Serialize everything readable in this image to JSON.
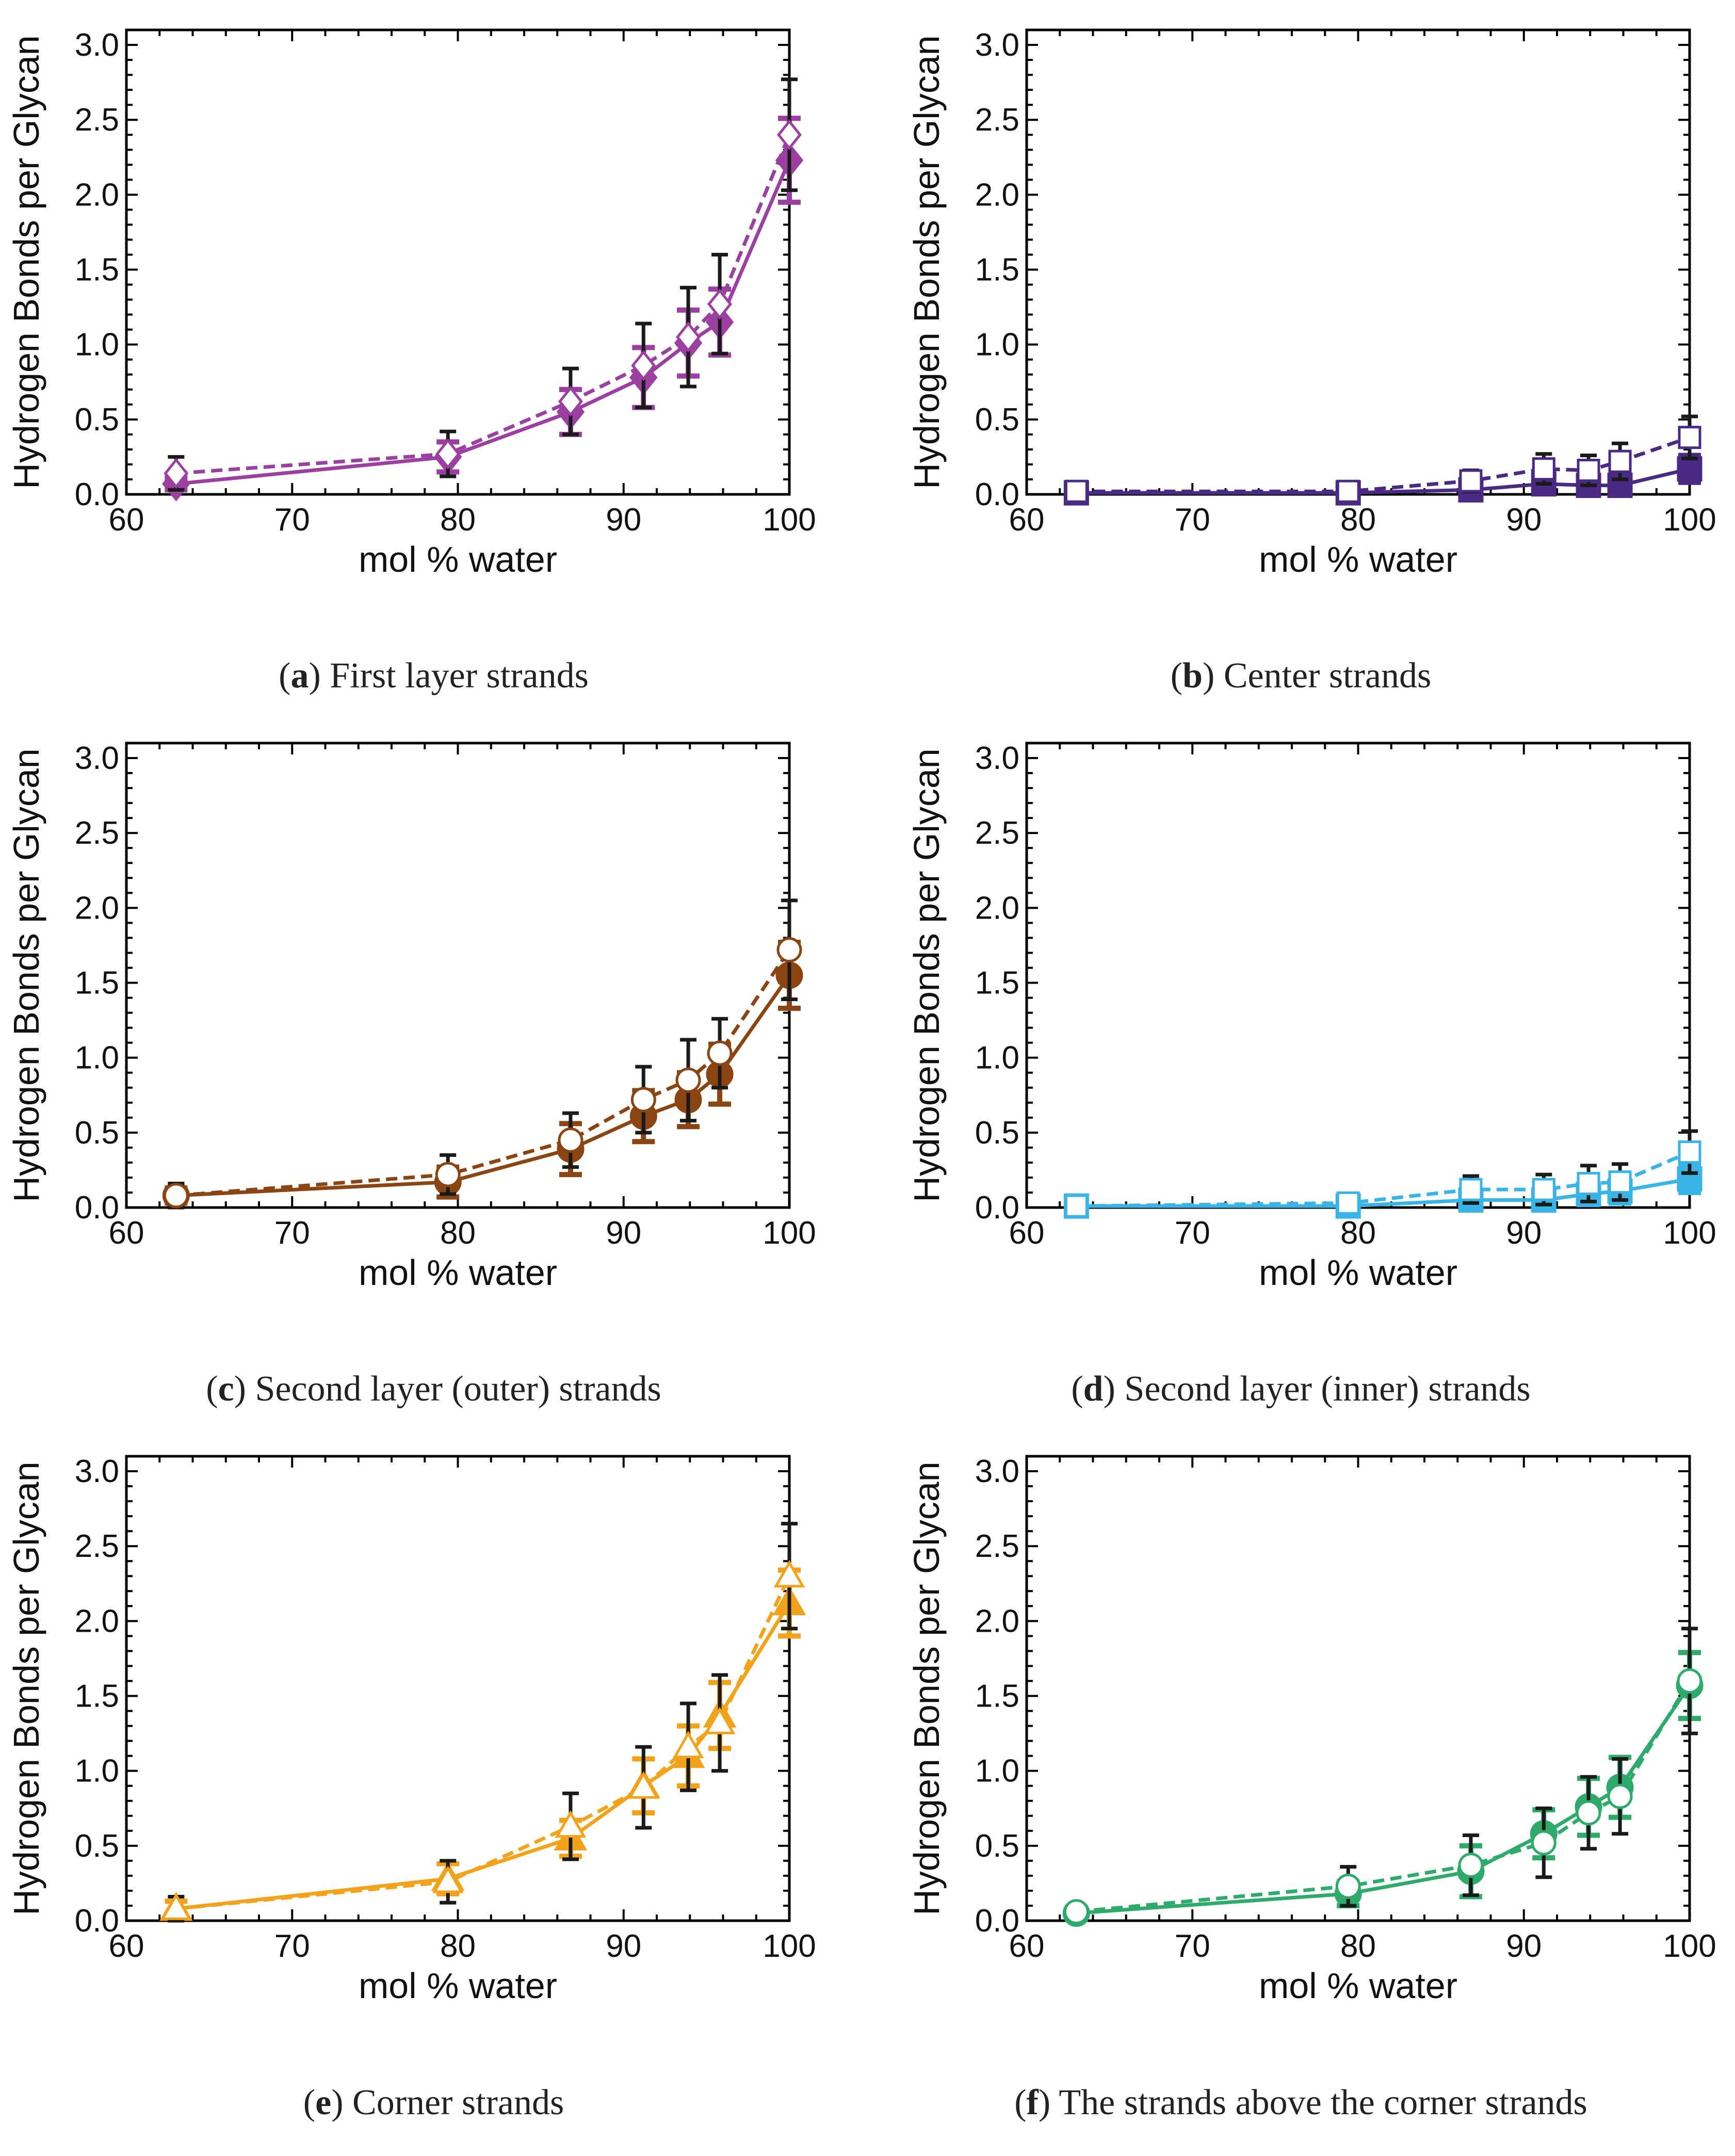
{
  "chart_data": [
    {
      "type": "line",
      "panel_label": "a",
      "caption": "First layer strands",
      "xlabel": "mol % water",
      "ylabel": "Hydrogen Bonds per Glycan",
      "xlim": [
        60,
        100
      ],
      "ylim": [
        0,
        3.1
      ],
      "xticks": [
        "60",
        "70",
        "80",
        "90",
        "100"
      ],
      "yticks": [
        "0.0",
        "0.5",
        "1.0",
        "1.5",
        "2.0",
        "2.5",
        "3.0"
      ],
      "color": "#9b3fa0",
      "marker": "diamond",
      "x": [
        63,
        79.4,
        86.8,
        91.2,
        93.9,
        95.8,
        100
      ],
      "series": [
        {
          "name": "solid",
          "style": "solid",
          "filled": true,
          "values": [
            0.07,
            0.25,
            0.55,
            0.78,
            1.01,
            1.15,
            2.23
          ],
          "errors": [
            0.04,
            0.1,
            0.15,
            0.2,
            0.22,
            0.22,
            0.28
          ]
        },
        {
          "name": "dashed",
          "style": "dashed",
          "filled": false,
          "values": [
            0.14,
            0.27,
            0.62,
            0.86,
            1.05,
            1.27,
            2.4
          ],
          "errors": [
            0.11,
            0.15,
            0.22,
            0.28,
            0.33,
            0.33,
            0.37
          ]
        }
      ]
    },
    {
      "type": "line",
      "panel_label": "b",
      "caption": "Center strands",
      "xlabel": "mol % water",
      "ylabel": "Hydrogen Bonds per Glycan",
      "xlim": [
        60,
        100
      ],
      "ylim": [
        0,
        3.1
      ],
      "xticks": [
        "60",
        "70",
        "80",
        "90",
        "100"
      ],
      "yticks": [
        "0.0",
        "0.5",
        "1.0",
        "1.5",
        "2.0",
        "2.5",
        "3.0"
      ],
      "color": "#4a2a85",
      "marker": "square",
      "x": [
        63,
        79.4,
        86.8,
        91.2,
        93.9,
        95.8,
        100
      ],
      "series": [
        {
          "name": "solid",
          "style": "solid",
          "filled": true,
          "values": [
            0.01,
            0.01,
            0.03,
            0.07,
            0.06,
            0.06,
            0.17
          ],
          "errors": [
            0.01,
            0.01,
            0.03,
            0.05,
            0.05,
            0.05,
            0.09
          ]
        },
        {
          "name": "dashed",
          "style": "dashed",
          "filled": false,
          "values": [
            0.02,
            0.02,
            0.09,
            0.17,
            0.16,
            0.22,
            0.38
          ],
          "errors": [
            0.02,
            0.02,
            0.07,
            0.1,
            0.1,
            0.12,
            0.14
          ]
        }
      ]
    },
    {
      "type": "line",
      "panel_label": "c",
      "caption": "Second layer (outer) strands",
      "xlabel": "mol % water",
      "ylabel": "Hydrogen Bonds per Glycan",
      "xlim": [
        60,
        100
      ],
      "ylim": [
        0,
        3.1
      ],
      "xticks": [
        "60",
        "70",
        "80",
        "90",
        "100"
      ],
      "yticks": [
        "0.0",
        "0.5",
        "1.0",
        "1.5",
        "2.0",
        "2.5",
        "3.0"
      ],
      "color": "#8b4513",
      "marker": "circle",
      "x": [
        63,
        79.4,
        86.8,
        91.2,
        93.9,
        95.8,
        100
      ],
      "series": [
        {
          "name": "solid",
          "style": "solid",
          "filled": true,
          "values": [
            0.08,
            0.17,
            0.39,
            0.61,
            0.72,
            0.89,
            1.55
          ],
          "errors": [
            0.05,
            0.1,
            0.17,
            0.17,
            0.18,
            0.2,
            0.22
          ]
        },
        {
          "name": "dashed",
          "style": "dashed",
          "filled": false,
          "values": [
            0.08,
            0.22,
            0.45,
            0.72,
            0.85,
            1.03,
            1.72
          ],
          "errors": [
            0.08,
            0.13,
            0.18,
            0.22,
            0.27,
            0.23,
            0.33
          ]
        }
      ]
    },
    {
      "type": "line",
      "panel_label": "d",
      "caption": "Second layer (inner) strands",
      "xlabel": "mol % water",
      "ylabel": "Hydrogen Bonds per Glycan",
      "xlim": [
        60,
        100
      ],
      "ylim": [
        0,
        3.1
      ],
      "xticks": [
        "60",
        "70",
        "80",
        "90",
        "100"
      ],
      "yticks": [
        "0.0",
        "0.5",
        "1.0",
        "1.5",
        "2.0",
        "2.5",
        "3.0"
      ],
      "color": "#3ab4e6",
      "marker": "square",
      "x": [
        63,
        79.4,
        86.8,
        91.2,
        93.9,
        95.8,
        100
      ],
      "series": [
        {
          "name": "solid",
          "style": "solid",
          "filled": true,
          "values": [
            0.01,
            0.01,
            0.05,
            0.05,
            0.09,
            0.11,
            0.19
          ],
          "errors": [
            0.02,
            0.02,
            0.05,
            0.05,
            0.07,
            0.08,
            0.09
          ]
        },
        {
          "name": "dashed",
          "style": "dashed",
          "filled": false,
          "values": [
            0.01,
            0.03,
            0.12,
            0.12,
            0.16,
            0.17,
            0.37
          ],
          "errors": [
            0.02,
            0.02,
            0.09,
            0.1,
            0.12,
            0.12,
            0.14
          ]
        }
      ]
    },
    {
      "type": "line",
      "panel_label": "e",
      "caption": "Corner strands",
      "xlabel": "mol % water",
      "ylabel": "Hydrogen Bonds per Glycan",
      "xlim": [
        60,
        100
      ],
      "ylim": [
        0,
        3.1
      ],
      "xticks": [
        "60",
        "70",
        "80",
        "90",
        "100"
      ],
      "yticks": [
        "0.0",
        "0.5",
        "1.0",
        "1.5",
        "2.0",
        "2.5",
        "3.0"
      ],
      "color": "#f2a31b",
      "marker": "triangle",
      "x": [
        63,
        79.4,
        86.8,
        91.2,
        93.9,
        95.8,
        100
      ],
      "series": [
        {
          "name": "solid",
          "style": "solid",
          "filled": true,
          "values": [
            0.08,
            0.28,
            0.55,
            0.9,
            1.1,
            1.37,
            2.12
          ],
          "errors": [
            0.05,
            0.1,
            0.12,
            0.18,
            0.2,
            0.22,
            0.22
          ]
        },
        {
          "name": "dashed",
          "style": "dashed",
          "filled": false,
          "values": [
            0.08,
            0.26,
            0.63,
            0.89,
            1.16,
            1.32,
            2.3
          ],
          "errors": [
            0.08,
            0.14,
            0.22,
            0.27,
            0.29,
            0.32,
            0.35
          ]
        }
      ]
    },
    {
      "type": "line",
      "panel_label": "f",
      "caption": "The strands above the corner strands",
      "xlabel": "mol % water",
      "ylabel": "Hydrogen Bonds per Glycan",
      "xlim": [
        60,
        100
      ],
      "ylim": [
        0,
        3.1
      ],
      "xticks": [
        "60",
        "70",
        "80",
        "90",
        "100"
      ],
      "yticks": [
        "0.0",
        "0.5",
        "1.0",
        "1.5",
        "2.0",
        "2.5",
        "3.0"
      ],
      "color": "#2eaa6a",
      "marker": "circle",
      "x": [
        63,
        79.4,
        86.8,
        91.2,
        93.9,
        95.8,
        100
      ],
      "series": [
        {
          "name": "solid",
          "style": "solid",
          "filled": true,
          "values": [
            0.05,
            0.18,
            0.33,
            0.58,
            0.76,
            0.89,
            1.57
          ],
          "errors": [
            0.04,
            0.08,
            0.17,
            0.16,
            0.19,
            0.2,
            0.22
          ]
        },
        {
          "name": "dashed",
          "style": "dashed",
          "filled": false,
          "values": [
            0.06,
            0.23,
            0.37,
            0.52,
            0.72,
            0.83,
            1.6
          ],
          "errors": [
            0.05,
            0.13,
            0.2,
            0.23,
            0.24,
            0.25,
            0.35
          ]
        }
      ]
    }
  ]
}
